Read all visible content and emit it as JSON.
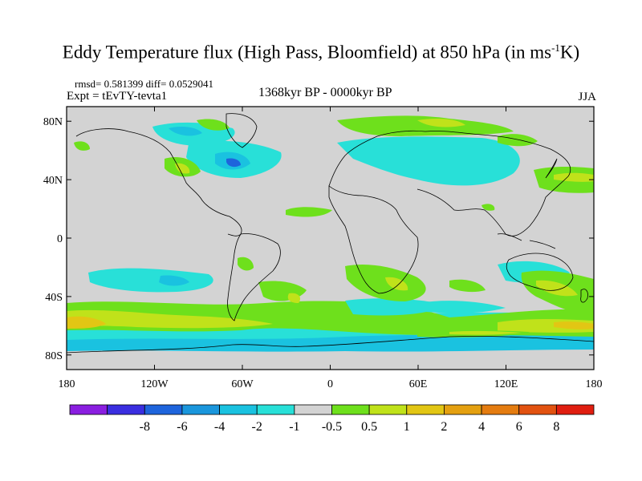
{
  "title": {
    "main": "Eddy Temperature flux (High Pass, Bloomfield) at 850 hPa (in ms",
    "sup": "-1",
    "tail": "K)"
  },
  "stats": "rmsd= 0.581399 diff= 0.0529041",
  "experiment": "Expt = tEvTY-tevta1",
  "period": "1368kyr BP - 0000kyr BP",
  "season": "JJA",
  "map": {
    "background_color": "#d3d3d3",
    "lon_range": [
      -180,
      180
    ],
    "lat_range": [
      -90,
      90
    ],
    "lat_ticks": [
      {
        "value": 80,
        "label": "80N"
      },
      {
        "value": 40,
        "label": "40N"
      },
      {
        "value": 0,
        "label": "0"
      },
      {
        "value": -40,
        "label": "40S"
      },
      {
        "value": -80,
        "label": "80S"
      }
    ],
    "lon_ticks": [
      {
        "value": -180,
        "label": "180"
      },
      {
        "value": -120,
        "label": "120W"
      },
      {
        "value": -60,
        "label": "60W"
      },
      {
        "value": 0,
        "label": "0"
      },
      {
        "value": 60,
        "label": "60E"
      },
      {
        "value": 120,
        "label": "120E"
      },
      {
        "value": 180,
        "label": "180"
      }
    ]
  },
  "colorbar": {
    "colors": [
      "#8a1ee0",
      "#3a2ee0",
      "#1e64dc",
      "#1a96dc",
      "#1ac2e0",
      "#28e0d8",
      "#d3d3d3",
      "#6ee01c",
      "#c0e21a",
      "#e2c614",
      "#e4a010",
      "#e47c10",
      "#e25210",
      "#e01e10"
    ],
    "labels": [
      "-8",
      "-6",
      "-4",
      "-2",
      "-1",
      "-0.5",
      "0.5",
      "1",
      "2",
      "4",
      "6",
      "8"
    ]
  }
}
